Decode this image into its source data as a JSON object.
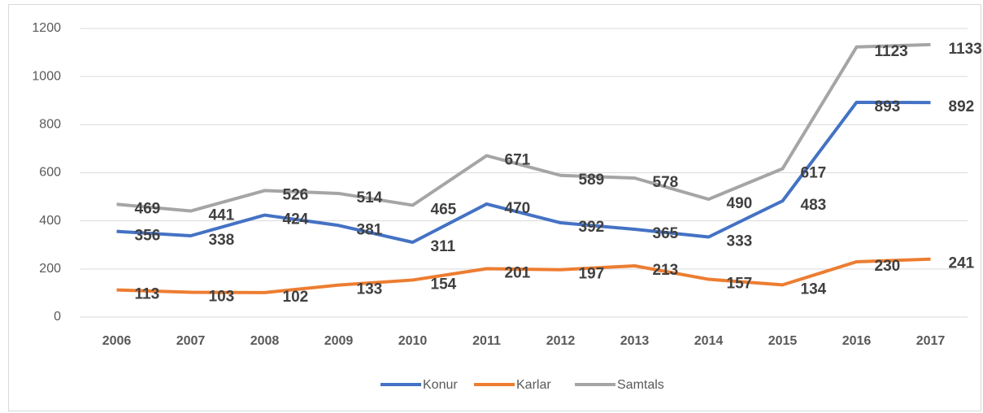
{
  "chart_data": {
    "type": "line",
    "categories": [
      "2006",
      "2007",
      "2008",
      "2009",
      "2010",
      "2011",
      "2012",
      "2013",
      "2014",
      "2015",
      "2016",
      "2017"
    ],
    "series": [
      {
        "name": "Konur",
        "color": "#4472c4",
        "values": [
          356,
          338,
          424,
          381,
          311,
          470,
          392,
          365,
          333,
          483,
          893,
          892
        ]
      },
      {
        "name": "Karlar",
        "color": "#ed7d31",
        "values": [
          113,
          103,
          102,
          133,
          154,
          201,
          197,
          213,
          157,
          134,
          230,
          241
        ]
      },
      {
        "name": "Samtals",
        "color": "#a5a5a5",
        "values": [
          469,
          441,
          526,
          514,
          465,
          671,
          589,
          578,
          490,
          617,
          1123,
          1133
        ]
      }
    ],
    "ylim": [
      0,
      1200
    ],
    "yticks": [
      0,
      200,
      400,
      600,
      800,
      1000,
      1200
    ],
    "grid": true,
    "legend": "bottom"
  }
}
